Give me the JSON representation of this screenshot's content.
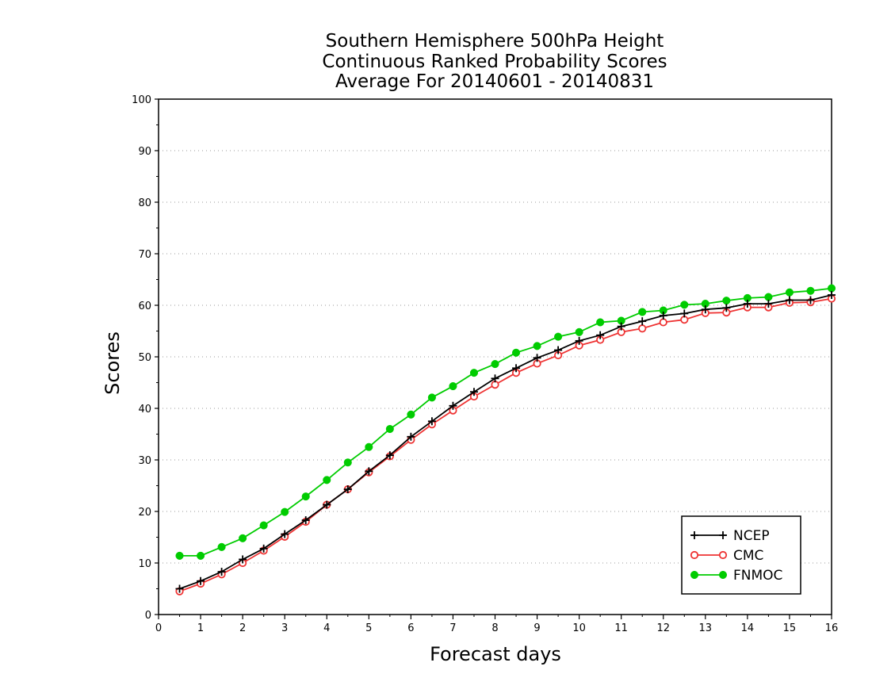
{
  "chart_data": {
    "type": "line",
    "title": [
      "Southern Hemisphere 500hPa Height",
      "Continuous Ranked Probability Scores",
      "Average For 20140601 - 20140831"
    ],
    "xlabel": "Forecast days",
    "ylabel": "Scores",
    "xlim": [
      0,
      16
    ],
    "ylim": [
      0,
      100
    ],
    "xticks": [
      "0",
      "1",
      "2",
      "3",
      "4",
      "5",
      "6",
      "7",
      "8",
      "9",
      "10",
      "11",
      "12",
      "13",
      "14",
      "15",
      "16"
    ],
    "yticks": [
      "0",
      "10",
      "20",
      "30",
      "40",
      "50",
      "60",
      "70",
      "80",
      "90",
      "100"
    ],
    "grid": "horizontal dotted",
    "legend_position": "bottom-right",
    "x": [
      0.5,
      1.0,
      1.5,
      2.0,
      2.5,
      3.0,
      3.5,
      4.0,
      4.5,
      5.0,
      5.5,
      6.0,
      6.5,
      7.0,
      7.5,
      8.0,
      8.5,
      9.0,
      9.5,
      10.0,
      10.5,
      11.0,
      11.5,
      12.0,
      12.5,
      13.0,
      13.5,
      14.0,
      14.5,
      15.0,
      15.5,
      16.0
    ],
    "series": [
      {
        "name": "NCEP",
        "color": "#000000",
        "marker": "plus",
        "values": [
          5.0,
          6.5,
          8.3,
          10.7,
          12.8,
          15.6,
          18.3,
          21.3,
          24.3,
          27.8,
          30.9,
          34.5,
          37.5,
          40.5,
          43.2,
          45.8,
          47.8,
          49.8,
          51.3,
          53.1,
          54.2,
          55.9,
          56.9,
          58.0,
          58.4,
          59.2,
          59.5,
          60.3,
          60.3,
          61.0,
          61.0,
          62.0
        ]
      },
      {
        "name": "CMC",
        "color": "#ee3333",
        "marker": "open-circle",
        "values": [
          4.5,
          6.0,
          7.8,
          10.0,
          12.4,
          15.1,
          18.0,
          21.3,
          24.3,
          27.6,
          30.7,
          33.9,
          36.9,
          39.6,
          42.3,
          44.6,
          46.9,
          48.7,
          50.3,
          52.2,
          53.3,
          54.8,
          55.5,
          56.7,
          57.2,
          58.5,
          58.6,
          59.6,
          59.6,
          60.5,
          60.6,
          61.3
        ]
      },
      {
        "name": "FNMOC",
        "color": "#00cc00",
        "marker": "filled-circle",
        "values": [
          11.4,
          11.4,
          13.1,
          14.8,
          17.3,
          19.9,
          22.9,
          26.1,
          29.5,
          32.5,
          36.0,
          38.8,
          42.1,
          44.3,
          46.9,
          48.6,
          50.8,
          52.1,
          53.9,
          54.8,
          56.7,
          57.0,
          58.7,
          59.0,
          60.1,
          60.3,
          60.9,
          61.4,
          61.6,
          62.5,
          62.8,
          63.3
        ]
      }
    ]
  }
}
